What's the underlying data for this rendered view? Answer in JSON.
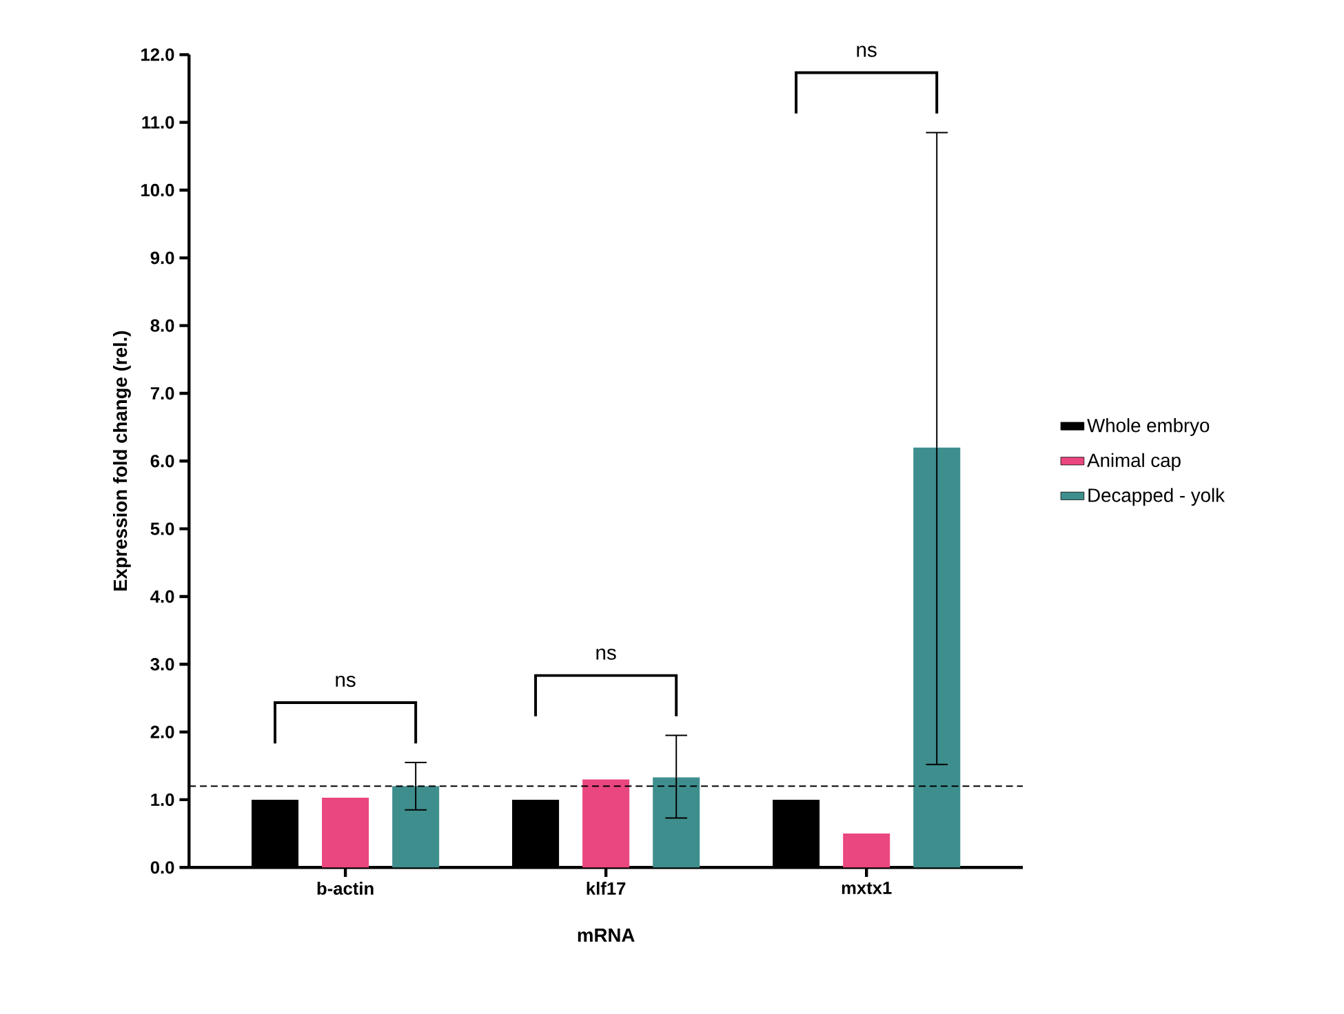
{
  "chart_data": {
    "type": "bar",
    "xlabel": "mRNA",
    "ylabel": "Expression fold change (rel.)",
    "categories": [
      "b-actin",
      "klf17",
      "mxtx1"
    ],
    "series": [
      {
        "name": "Whole embryo",
        "color": "#000000",
        "values": [
          1.0,
          1.0,
          1.0
        ]
      },
      {
        "name": "Animal cap",
        "color": "#ea4680",
        "values": [
          1.03,
          1.3,
          0.5
        ]
      },
      {
        "name": "Decapped - yolk",
        "color": "#3f8e8e",
        "values": [
          1.2,
          1.33,
          6.2
        ],
        "errors": [
          [
            0.85,
            1.55
          ],
          [
            0.73,
            1.95
          ],
          [
            1.52,
            10.85
          ]
        ]
      }
    ],
    "ylim": [
      0,
      12
    ],
    "yticks": [
      {
        "value": 0,
        "label": "0.0"
      },
      {
        "value": 1,
        "label": "1.0"
      },
      {
        "value": 2,
        "label": "2.0"
      },
      {
        "value": 3,
        "label": "3.0"
      },
      {
        "value": 4,
        "label": "4.0"
      },
      {
        "value": 5,
        "label": "5.0"
      },
      {
        "value": 6,
        "label": "6.0"
      },
      {
        "value": 7,
        "label": "7.0"
      },
      {
        "value": 8,
        "label": "8.0"
      },
      {
        "value": 9,
        "label": "9.0"
      },
      {
        "value": 10,
        "label": "10.0"
      },
      {
        "value": 11,
        "label": "11.0"
      },
      {
        "value": 12,
        "label": "12.0"
      }
    ],
    "ref_lines": [
      {
        "axis": "y",
        "value": 1.2,
        "line_style": "dashed",
        "color": "#000000"
      }
    ],
    "annotations": [
      "ns",
      "ns",
      "ns"
    ],
    "grid": false,
    "legend": "right"
  }
}
